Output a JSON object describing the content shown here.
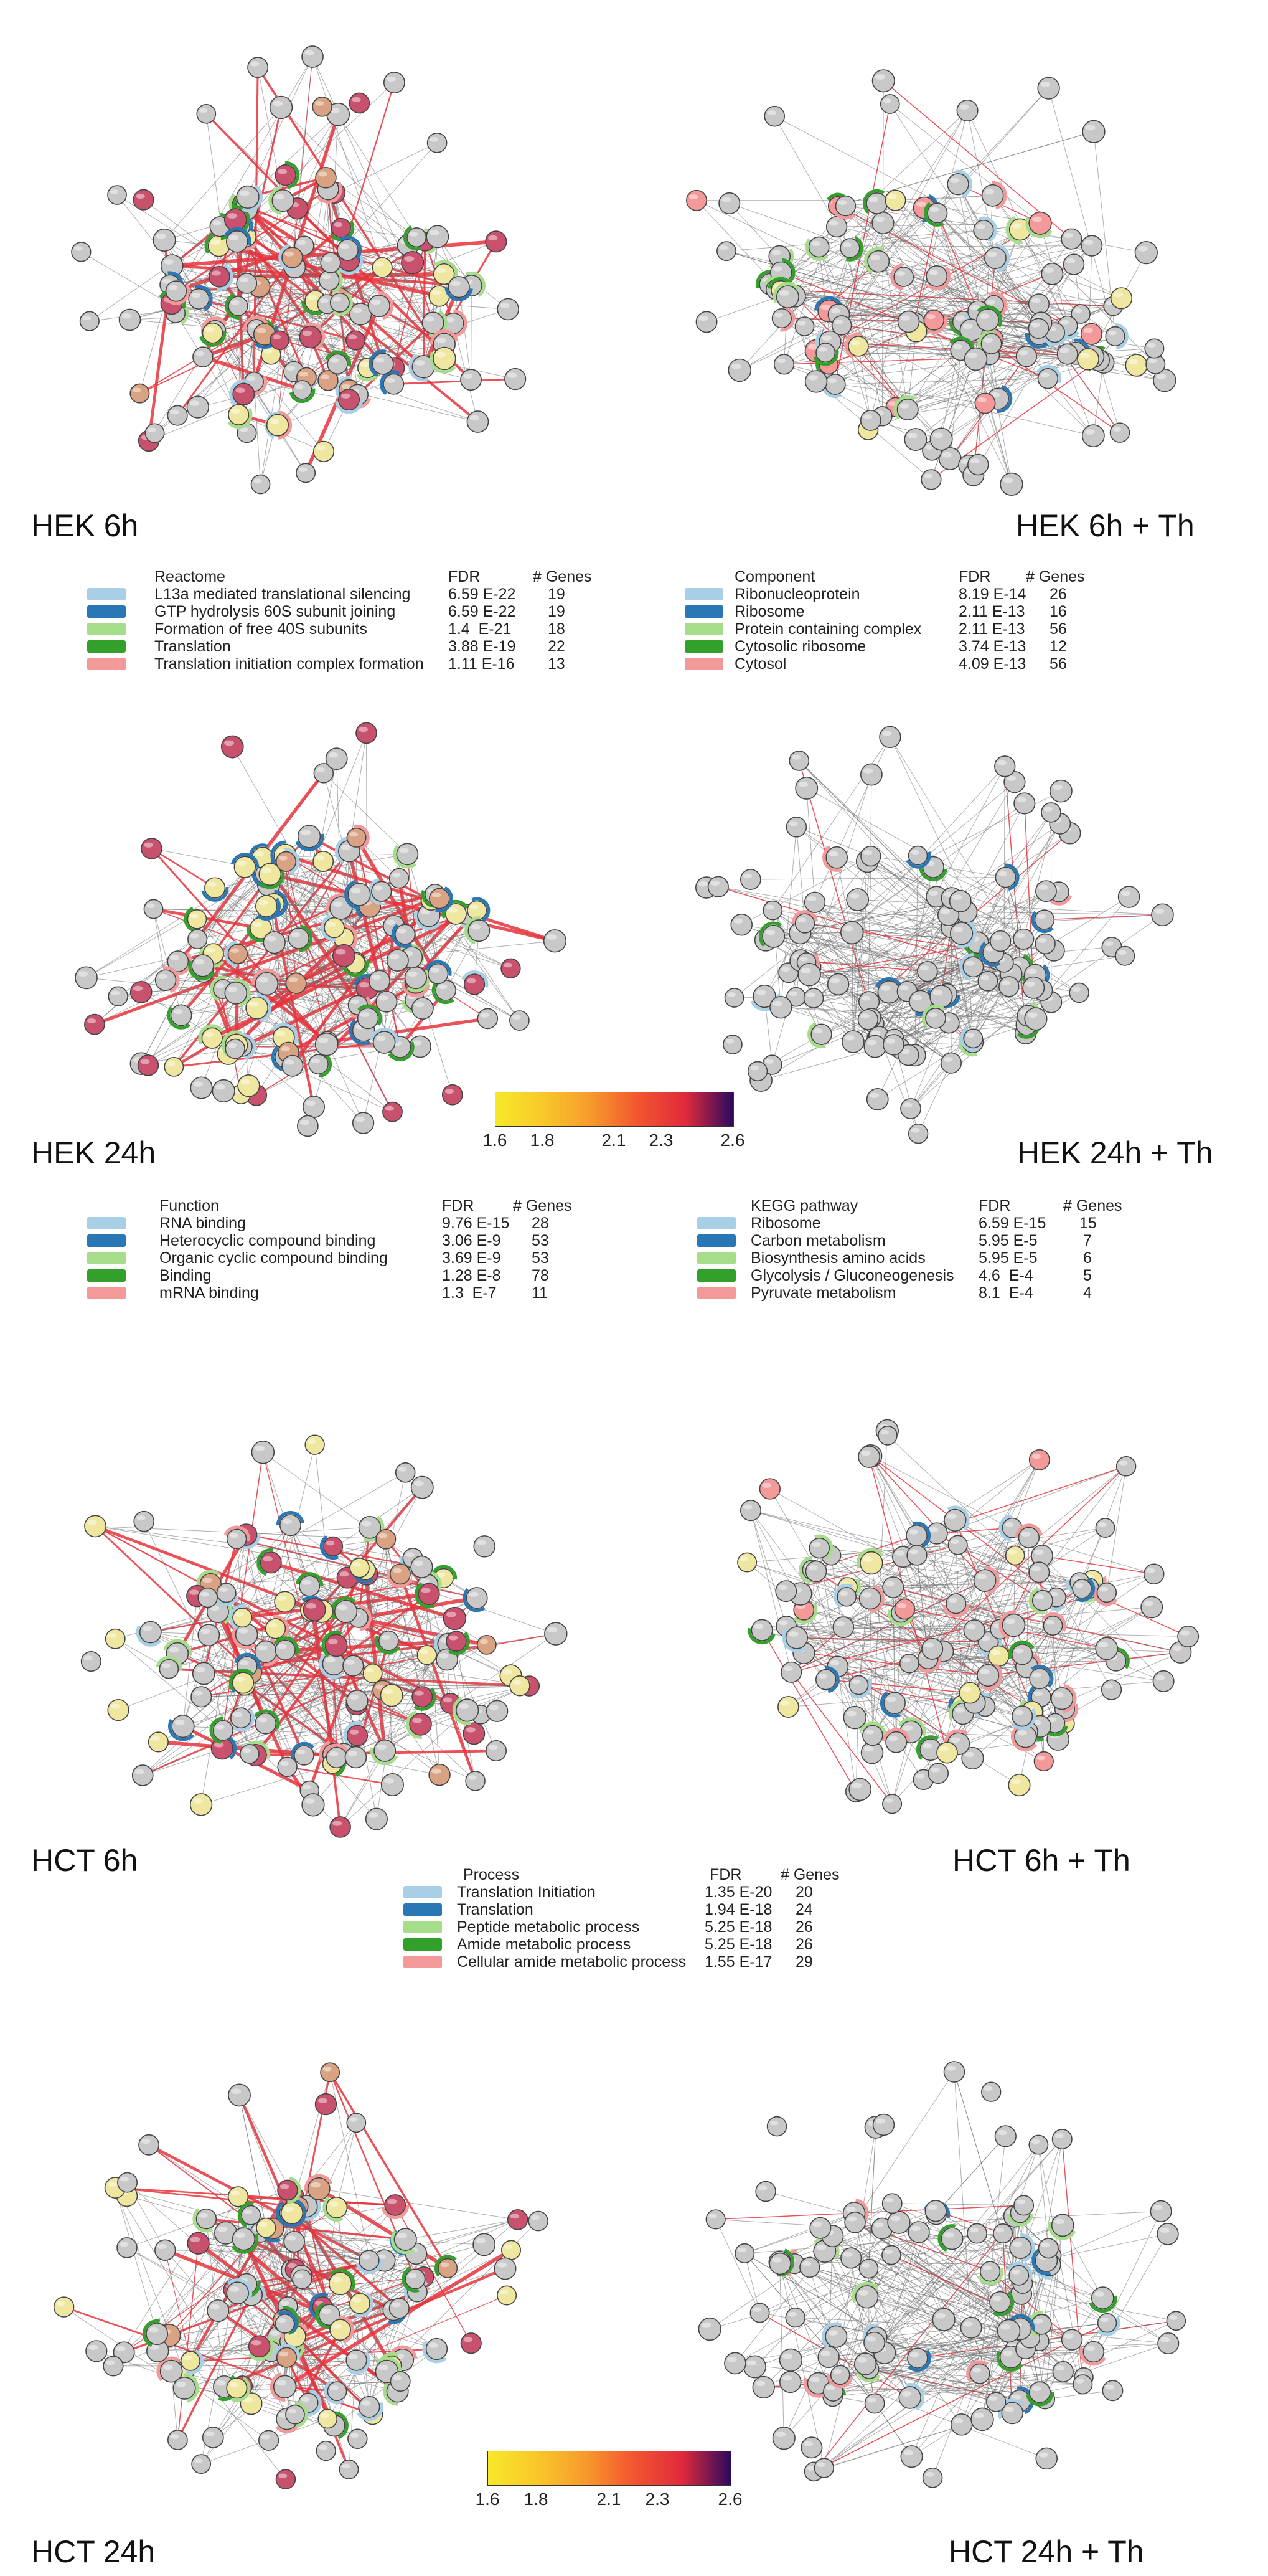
{
  "colors": {
    "hot_edge": "#e8323c",
    "grey_edge": "#6e6e6e",
    "node_grey": "#c8c8c8",
    "node_stroke": "#444444",
    "yellow": "#efe7a0",
    "orange": "#d9a383",
    "red": "#c8516e",
    "light_blue": "#a8cfe6",
    "dark_blue": "#2a77b6",
    "light_green": "#a6dd8a",
    "dark_green": "#33a02c",
    "pink": "#f4999a"
  },
  "panels": {
    "hek6": {
      "label": "HEK 6h",
      "style": "heat"
    },
    "hek6th": {
      "label": "HEK 6h + Th",
      "style": "mixed"
    },
    "hek24": {
      "label": "HEK 24h",
      "style": "heat"
    },
    "hek24th": {
      "label": "HEK 24h + Th",
      "style": "grey"
    },
    "hct6": {
      "label": "HCT 6h",
      "style": "heat"
    },
    "hct6th": {
      "label": "HCT 6h + Th",
      "style": "mixed"
    },
    "hct24": {
      "label": "HCT 24h",
      "style": "heat"
    },
    "hct24th": {
      "label": "HCT 24h + Th",
      "style": "grey"
    }
  },
  "legends": {
    "reactome": {
      "header": [
        "Reactome",
        "FDR",
        "# Genes"
      ],
      "rows": [
        {
          "name": "L13a mediated translational silencing",
          "fdr": "6.59 E-22",
          "genes": "19",
          "color": "#a8cfe6"
        },
        {
          "name": "GTP hydrolysis 60S subunit joining",
          "fdr": "6.59 E-22",
          "genes": "19",
          "color": "#2a77b6"
        },
        {
          "name": "Formation of free 40S subunits",
          "fdr": "1.4  E-21",
          "genes": "18",
          "color": "#a6dd8a"
        },
        {
          "name": "Translation",
          "fdr": "3.88 E-19",
          "genes": "22",
          "color": "#33a02c"
        },
        {
          "name": "Translation initiation complex formation",
          "fdr": "1.11 E-16",
          "genes": "13",
          "color": "#f4999a"
        }
      ]
    },
    "component": {
      "header": [
        "Component",
        "FDR",
        "# Genes"
      ],
      "rows": [
        {
          "name": "Ribonucleoprotein",
          "fdr": "8.19 E-14",
          "genes": "26",
          "color": "#a8cfe6"
        },
        {
          "name": "Ribosome",
          "fdr": "2.11 E-13",
          "genes": "16",
          "color": "#2a77b6"
        },
        {
          "name": "Protein containing complex",
          "fdr": "2.11 E-13",
          "genes": "56",
          "color": "#a6dd8a"
        },
        {
          "name": "Cytosolic ribosome",
          "fdr": "3.74 E-13",
          "genes": "12",
          "color": "#33a02c"
        },
        {
          "name": "Cytosol",
          "fdr": "4.09 E-13",
          "genes": "56",
          "color": "#f4999a"
        }
      ]
    },
    "function": {
      "header": [
        "Function",
        "FDR",
        "# Genes"
      ],
      "rows": [
        {
          "name": "RNA binding",
          "fdr": "9.76 E-15",
          "genes": "28",
          "color": "#a8cfe6"
        },
        {
          "name": "Heterocyclic compound binding",
          "fdr": "3.06 E-9",
          "genes": "53",
          "color": "#2a77b6"
        },
        {
          "name": "Organic cyclic compound binding",
          "fdr": "3.69 E-9",
          "genes": "53",
          "color": "#a6dd8a"
        },
        {
          "name": "Binding",
          "fdr": "1.28 E-8",
          "genes": "78",
          "color": "#33a02c"
        },
        {
          "name": "mRNA binding",
          "fdr": "1.3  E-7",
          "genes": "11",
          "color": "#f4999a"
        }
      ]
    },
    "kegg": {
      "header": [
        "KEGG pathway",
        "FDR",
        "# Genes"
      ],
      "rows": [
        {
          "name": "Ribosome",
          "fdr": "6.59 E-15",
          "genes": "15",
          "color": "#a8cfe6"
        },
        {
          "name": "Carbon metabolism",
          "fdr": "5.95 E-5",
          "genes": "7",
          "color": "#2a77b6"
        },
        {
          "name": "Biosynthesis amino acids",
          "fdr": "5.95 E-5",
          "genes": "6",
          "color": "#a6dd8a"
        },
        {
          "name": "Glycolysis / Gluconeogenesis",
          "fdr": "4.6  E-4",
          "genes": "5",
          "color": "#33a02c"
        },
        {
          "name": "Pyruvate metabolism",
          "fdr": "8.1  E-4",
          "genes": "4",
          "color": "#f4999a"
        }
      ]
    },
    "process": {
      "header": [
        "Process",
        "FDR",
        "# Genes"
      ],
      "rows": [
        {
          "name": "Translation Initiation",
          "fdr": "1.35 E-20",
          "genes": "20",
          "color": "#a8cfe6"
        },
        {
          "name": "Translation",
          "fdr": "1.94 E-18",
          "genes": "24",
          "color": "#2a77b6"
        },
        {
          "name": "Peptide metabolic process",
          "fdr": "5.25 E-18",
          "genes": "26",
          "color": "#a6dd8a"
        },
        {
          "name": "Amide metabolic process",
          "fdr": "5.25 E-18",
          "genes": "26",
          "color": "#33a02c"
        },
        {
          "name": "Cellular amide metabolic process",
          "fdr": "1.55 E-17",
          "genes": "29",
          "color": "#f4999a"
        }
      ]
    }
  },
  "colorbar": {
    "ticks": [
      "1.6",
      "1.8",
      "2.1",
      "2.3",
      "2.6"
    ],
    "tick_values": [
      1.6,
      1.8,
      2.1,
      2.3,
      2.6
    ],
    "range": [
      1.6,
      2.6
    ],
    "gradient": [
      "#f7e82a",
      "#f8c82a",
      "#f79a2c",
      "#f2552f",
      "#e02a3c",
      "#2a0a5e"
    ]
  }
}
